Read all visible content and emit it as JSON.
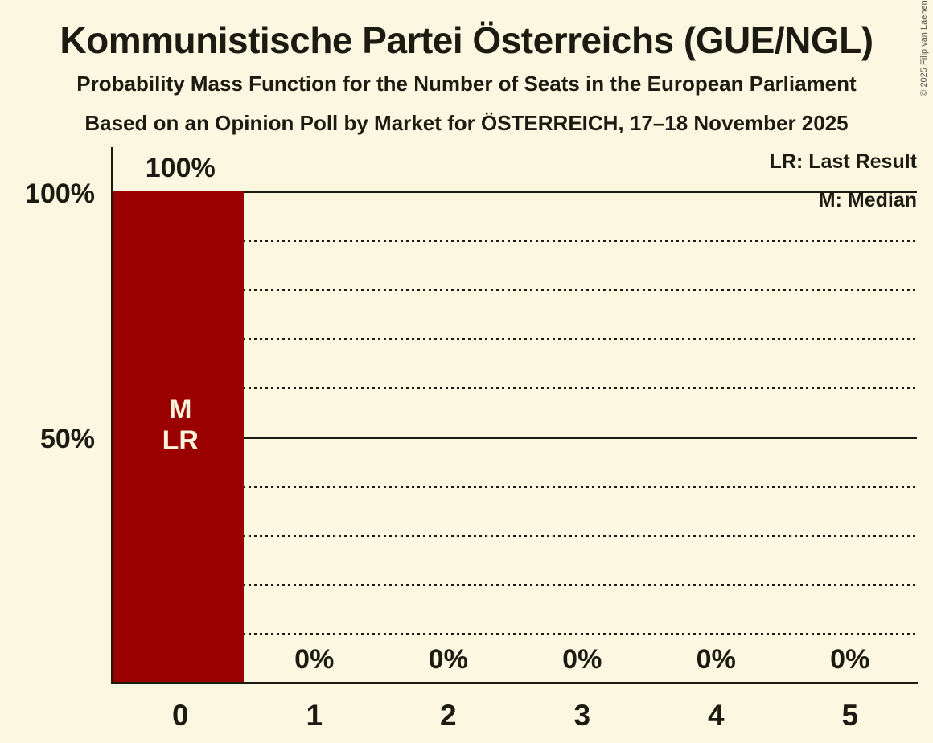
{
  "title": "Kommunistische Partei Österreichs (GUE/NGL)",
  "subtitle1": "Probability Mass Function for the Number of Seats in the European Parliament",
  "subtitle2": "Based on an Opinion Poll by Market for ÖSTERREICH, 17–18 November 2025",
  "copyright": "© 2025 Filip van Laenen",
  "legend": {
    "last_result": "LR: Last Result",
    "median": "M: Median"
  },
  "y_axis": {
    "labels": [
      "100%",
      "50%"
    ]
  },
  "chart_data": {
    "type": "bar",
    "title": "Kommunistische Partei Österreichs (GUE/NGL)",
    "xlabel": "Number of Seats",
    "ylabel": "Probability",
    "categories": [
      "0",
      "1",
      "2",
      "3",
      "4",
      "5"
    ],
    "values": [
      100,
      0,
      0,
      0,
      0,
      0
    ],
    "bar_labels": [
      "100%",
      "0%",
      "0%",
      "0%",
      "0%",
      "0%"
    ],
    "ylim": [
      0,
      100
    ],
    "gridlines_pct": [
      10,
      20,
      30,
      40,
      50,
      60,
      70,
      80,
      90,
      100
    ],
    "solid_gridlines_pct": [
      50,
      100
    ],
    "median_category": "0",
    "last_result_category": "0",
    "annotations": [
      {
        "category": "0",
        "lines": [
          "M",
          "LR"
        ]
      }
    ],
    "legend_position": "top-right",
    "grid": true
  },
  "colors": {
    "background": "#FCF7E0",
    "ink": "#1B1B12",
    "bar": "#9B0000",
    "bar_text": "#F9F3DC",
    "copyright_text": "#55554A"
  }
}
